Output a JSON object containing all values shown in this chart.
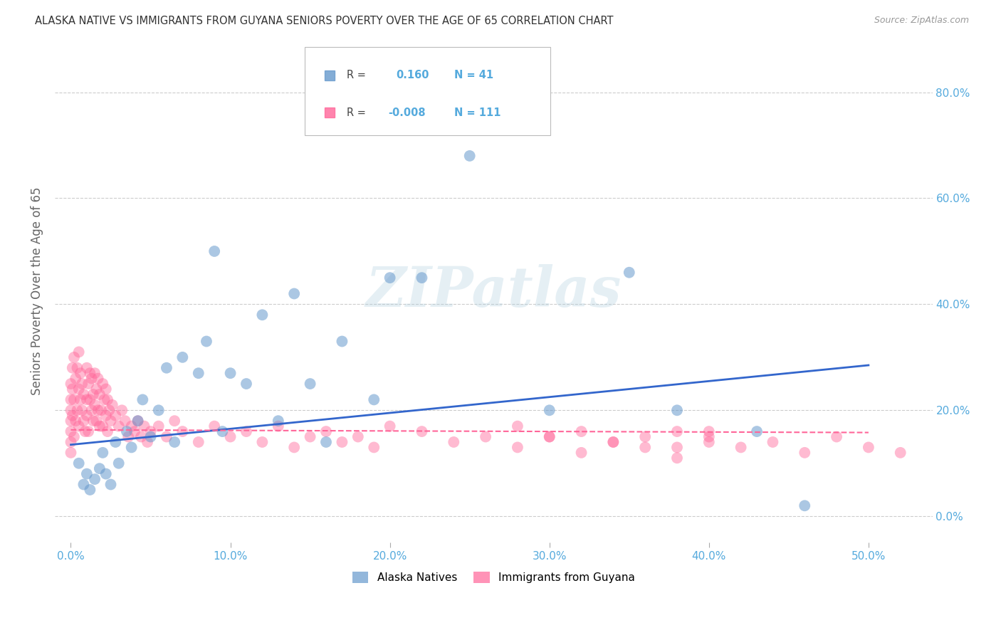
{
  "title": "ALASKA NATIVE VS IMMIGRANTS FROM GUYANA SENIORS POVERTY OVER THE AGE OF 65 CORRELATION CHART",
  "source": "Source: ZipAtlas.com",
  "ylabel_label": "Seniors Poverty Over the Age of 65",
  "legend_label1": "Alaska Natives",
  "legend_label2": "Immigrants from Guyana",
  "R1": 0.16,
  "N1": 41,
  "R2": -0.008,
  "N2": 111,
  "color_blue": "#6699CC",
  "color_pink": "#FF6699",
  "color_trend_blue": "#3366CC",
  "color_trend_pink": "#FF6699",
  "color_axis_tick": "#55AADD",
  "color_grid": "#CCCCCC",
  "x_ticks": [
    0.0,
    0.1,
    0.2,
    0.3,
    0.4,
    0.5
  ],
  "x_labels": [
    "0.0%",
    "10.0%",
    "20.0%",
    "30.0%",
    "40.0%",
    "50.0%"
  ],
  "y_ticks": [
    0.0,
    0.2,
    0.4,
    0.6,
    0.8
  ],
  "y_labels": [
    "0.0%",
    "20.0%",
    "40.0%",
    "60.0%",
    "80.0%"
  ],
  "xlim": [
    -0.01,
    0.54
  ],
  "ylim": [
    -0.05,
    0.9
  ],
  "alaska_x": [
    0.005,
    0.008,
    0.01,
    0.012,
    0.015,
    0.018,
    0.02,
    0.022,
    0.025,
    0.028,
    0.03,
    0.035,
    0.038,
    0.042,
    0.045,
    0.05,
    0.055,
    0.06,
    0.065,
    0.07,
    0.08,
    0.085,
    0.09,
    0.095,
    0.1,
    0.11,
    0.12,
    0.13,
    0.14,
    0.15,
    0.16,
    0.17,
    0.19,
    0.2,
    0.22,
    0.25,
    0.3,
    0.35,
    0.38,
    0.43,
    0.46
  ],
  "alaska_y": [
    0.1,
    0.06,
    0.08,
    0.05,
    0.07,
    0.09,
    0.12,
    0.08,
    0.06,
    0.14,
    0.1,
    0.16,
    0.13,
    0.18,
    0.22,
    0.15,
    0.2,
    0.28,
    0.14,
    0.3,
    0.27,
    0.33,
    0.5,
    0.16,
    0.27,
    0.25,
    0.38,
    0.18,
    0.42,
    0.25,
    0.14,
    0.33,
    0.22,
    0.45,
    0.45,
    0.68,
    0.2,
    0.46,
    0.2,
    0.16,
    0.02
  ],
  "guyana_x": [
    0.0,
    0.0,
    0.0,
    0.0,
    0.0,
    0.0,
    0.0,
    0.001,
    0.001,
    0.001,
    0.002,
    0.002,
    0.002,
    0.003,
    0.003,
    0.004,
    0.004,
    0.005,
    0.005,
    0.005,
    0.006,
    0.006,
    0.007,
    0.007,
    0.008,
    0.008,
    0.009,
    0.01,
    0.01,
    0.01,
    0.011,
    0.011,
    0.012,
    0.012,
    0.013,
    0.013,
    0.014,
    0.014,
    0.015,
    0.015,
    0.016,
    0.016,
    0.017,
    0.017,
    0.018,
    0.018,
    0.019,
    0.02,
    0.02,
    0.021,
    0.022,
    0.022,
    0.023,
    0.023,
    0.024,
    0.025,
    0.026,
    0.028,
    0.03,
    0.032,
    0.034,
    0.036,
    0.038,
    0.04,
    0.042,
    0.044,
    0.046,
    0.048,
    0.05,
    0.055,
    0.06,
    0.065,
    0.07,
    0.08,
    0.09,
    0.1,
    0.11,
    0.12,
    0.13,
    0.14,
    0.15,
    0.16,
    0.17,
    0.18,
    0.19,
    0.2,
    0.22,
    0.24,
    0.26,
    0.28,
    0.3,
    0.32,
    0.34,
    0.36,
    0.38,
    0.4,
    0.42,
    0.44,
    0.46,
    0.48,
    0.5,
    0.52,
    0.38,
    0.4,
    0.28,
    0.3,
    0.32,
    0.34,
    0.36,
    0.38,
    0.4
  ],
  "guyana_y": [
    0.14,
    0.18,
    0.22,
    0.25,
    0.12,
    0.2,
    0.16,
    0.24,
    0.19,
    0.28,
    0.15,
    0.22,
    0.3,
    0.18,
    0.26,
    0.2,
    0.28,
    0.24,
    0.31,
    0.17,
    0.22,
    0.27,
    0.2,
    0.25,
    0.18,
    0.23,
    0.16,
    0.22,
    0.28,
    0.19,
    0.25,
    0.16,
    0.22,
    0.27,
    0.2,
    0.26,
    0.18,
    0.23,
    0.21,
    0.27,
    0.18,
    0.24,
    0.2,
    0.26,
    0.17,
    0.23,
    0.2,
    0.25,
    0.17,
    0.22,
    0.19,
    0.24,
    0.16,
    0.22,
    0.2,
    0.18,
    0.21,
    0.19,
    0.17,
    0.2,
    0.18,
    0.15,
    0.17,
    0.16,
    0.18,
    0.15,
    0.17,
    0.14,
    0.16,
    0.17,
    0.15,
    0.18,
    0.16,
    0.14,
    0.17,
    0.15,
    0.16,
    0.14,
    0.17,
    0.13,
    0.15,
    0.16,
    0.14,
    0.15,
    0.13,
    0.17,
    0.16,
    0.14,
    0.15,
    0.13,
    0.15,
    0.12,
    0.14,
    0.13,
    0.11,
    0.15,
    0.13,
    0.14,
    0.12,
    0.15,
    0.13,
    0.12,
    0.16,
    0.14,
    0.17,
    0.15,
    0.16,
    0.14,
    0.15,
    0.13,
    0.16
  ],
  "blue_trend_x": [
    0.0,
    0.5
  ],
  "blue_trend_y": [
    0.135,
    0.285
  ],
  "pink_trend_x": [
    0.0,
    0.5
  ],
  "pink_trend_y": [
    0.163,
    0.158
  ]
}
